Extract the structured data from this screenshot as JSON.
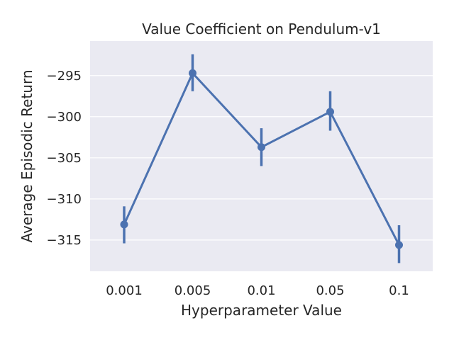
{
  "chart_data": {
    "type": "line",
    "title": "Value Coefficient on Pendulum-v1",
    "xlabel": "Hyperparameter Value",
    "ylabel": "Average Episodic Return",
    "categories": [
      "0.001",
      "0.005",
      "0.01",
      "0.05",
      "0.1"
    ],
    "values": [
      -313.1,
      -294.7,
      -303.7,
      -299.4,
      -315.6
    ],
    "error_low": [
      -315.4,
      -296.9,
      -306.0,
      -301.7,
      -317.8
    ],
    "error_high": [
      -310.9,
      -292.4,
      -301.4,
      -296.9,
      -313.2
    ],
    "yticks": [
      -295,
      -300,
      -305,
      -310,
      -315
    ],
    "ytick_labels": [
      "−295",
      "−300",
      "−305",
      "−310",
      "−315"
    ],
    "ylim": [
      -318.8,
      -290.8
    ],
    "grid": true,
    "colors": {
      "series": "#4c72b0",
      "plot_background": "#eaeaf2",
      "grid": "#ffffff",
      "text": "#262626"
    }
  }
}
